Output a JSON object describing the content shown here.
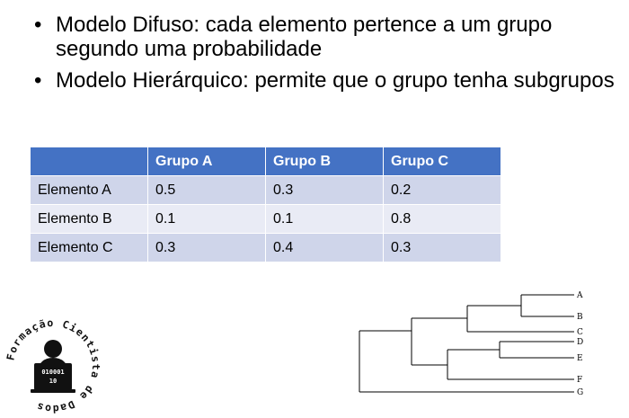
{
  "bullets": [
    {
      "text": "Modelo Difuso: cada elemento pertence a um grupo segundo uma probabilidade"
    },
    {
      "text": "Modelo Hierárquico: permite que o grupo tenha subgrupos"
    }
  ],
  "table": {
    "headers": [
      "",
      "Grupo A",
      "Grupo B",
      "Grupo C"
    ],
    "rows": [
      [
        "Elemento A",
        "0.5",
        "0.3",
        "0.2"
      ],
      [
        "Elemento B",
        "0.1",
        "0.1",
        "0.8"
      ],
      [
        "Elemento C",
        "0.3",
        "0.4",
        "0.3"
      ]
    ]
  },
  "logo": {
    "ring_text": "Formação Cientista de Dados",
    "screen_lines": [
      "010001",
      "10"
    ]
  },
  "dendrogram": {
    "leaves": [
      "A",
      "B",
      "C",
      "D",
      "E",
      "F",
      "G"
    ]
  },
  "colors": {
    "header_bg": "#4472c4",
    "row_dark": "#cfd5ea",
    "row_light": "#e9ebf5"
  }
}
